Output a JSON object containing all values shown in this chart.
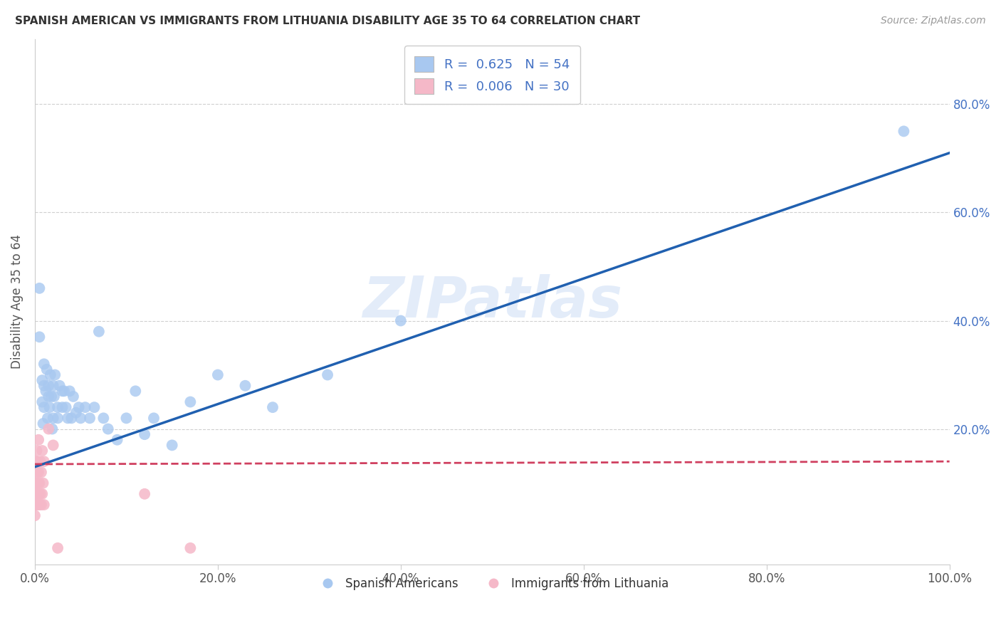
{
  "title": "SPANISH AMERICAN VS IMMIGRANTS FROM LITHUANIA DISABILITY AGE 35 TO 64 CORRELATION CHART",
  "source": "Source: ZipAtlas.com",
  "ylabel": "Disability Age 35 to 64",
  "xlim": [
    0.0,
    1.0
  ],
  "ylim": [
    -0.05,
    0.92
  ],
  "xtick_labels": [
    "0.0%",
    "20.0%",
    "40.0%",
    "60.0%",
    "80.0%",
    "100.0%"
  ],
  "xtick_vals": [
    0.0,
    0.2,
    0.4,
    0.6,
    0.8,
    1.0
  ],
  "ytick_labels": [
    "20.0%",
    "40.0%",
    "60.0%",
    "80.0%"
  ],
  "ytick_vals": [
    0.2,
    0.4,
    0.6,
    0.8
  ],
  "blue_R": 0.625,
  "blue_N": 54,
  "pink_R": 0.006,
  "pink_N": 30,
  "blue_color": "#a8c8f0",
  "pink_color": "#f5b8c8",
  "blue_line_color": "#2060b0",
  "pink_line_color": "#d04060",
  "watermark": "ZIPatlas",
  "legend_label_blue": "Spanish Americans",
  "legend_label_pink": "Immigrants from Lithuania",
  "blue_scatter_x": [
    0.005,
    0.005,
    0.008,
    0.008,
    0.009,
    0.01,
    0.01,
    0.01,
    0.012,
    0.013,
    0.014,
    0.015,
    0.015,
    0.016,
    0.017,
    0.018,
    0.019,
    0.02,
    0.02,
    0.021,
    0.022,
    0.025,
    0.025,
    0.027,
    0.03,
    0.03,
    0.032,
    0.034,
    0.036,
    0.038,
    0.04,
    0.042,
    0.045,
    0.048,
    0.05,
    0.055,
    0.06,
    0.065,
    0.07,
    0.075,
    0.08,
    0.09,
    0.1,
    0.11,
    0.12,
    0.13,
    0.15,
    0.17,
    0.2,
    0.23,
    0.26,
    0.32,
    0.4,
    0.95
  ],
  "blue_scatter_y": [
    0.46,
    0.37,
    0.29,
    0.25,
    0.21,
    0.28,
    0.24,
    0.32,
    0.27,
    0.31,
    0.22,
    0.26,
    0.28,
    0.24,
    0.3,
    0.26,
    0.2,
    0.22,
    0.28,
    0.26,
    0.3,
    0.24,
    0.22,
    0.28,
    0.27,
    0.24,
    0.27,
    0.24,
    0.22,
    0.27,
    0.22,
    0.26,
    0.23,
    0.24,
    0.22,
    0.24,
    0.22,
    0.24,
    0.38,
    0.22,
    0.2,
    0.18,
    0.22,
    0.27,
    0.19,
    0.22,
    0.17,
    0.25,
    0.3,
    0.28,
    0.24,
    0.3,
    0.4,
    0.75
  ],
  "pink_scatter_x": [
    0.0,
    0.0,
    0.001,
    0.001,
    0.001,
    0.002,
    0.002,
    0.002,
    0.003,
    0.003,
    0.003,
    0.004,
    0.004,
    0.004,
    0.005,
    0.005,
    0.006,
    0.006,
    0.007,
    0.007,
    0.008,
    0.008,
    0.009,
    0.01,
    0.01,
    0.015,
    0.02,
    0.025,
    0.12,
    0.17
  ],
  "pink_scatter_y": [
    0.08,
    0.04,
    0.1,
    0.06,
    0.14,
    0.08,
    0.12,
    0.16,
    0.06,
    0.1,
    0.14,
    0.08,
    0.12,
    0.18,
    0.06,
    0.1,
    0.08,
    0.14,
    0.06,
    0.12,
    0.08,
    0.16,
    0.1,
    0.06,
    0.14,
    0.2,
    0.17,
    -0.02,
    0.08,
    -0.02
  ],
  "blue_line_x": [
    0.0,
    1.0
  ],
  "blue_line_y": [
    0.13,
    0.71
  ],
  "pink_line_x": [
    0.0,
    1.0
  ],
  "pink_line_y": [
    0.135,
    0.14
  ]
}
